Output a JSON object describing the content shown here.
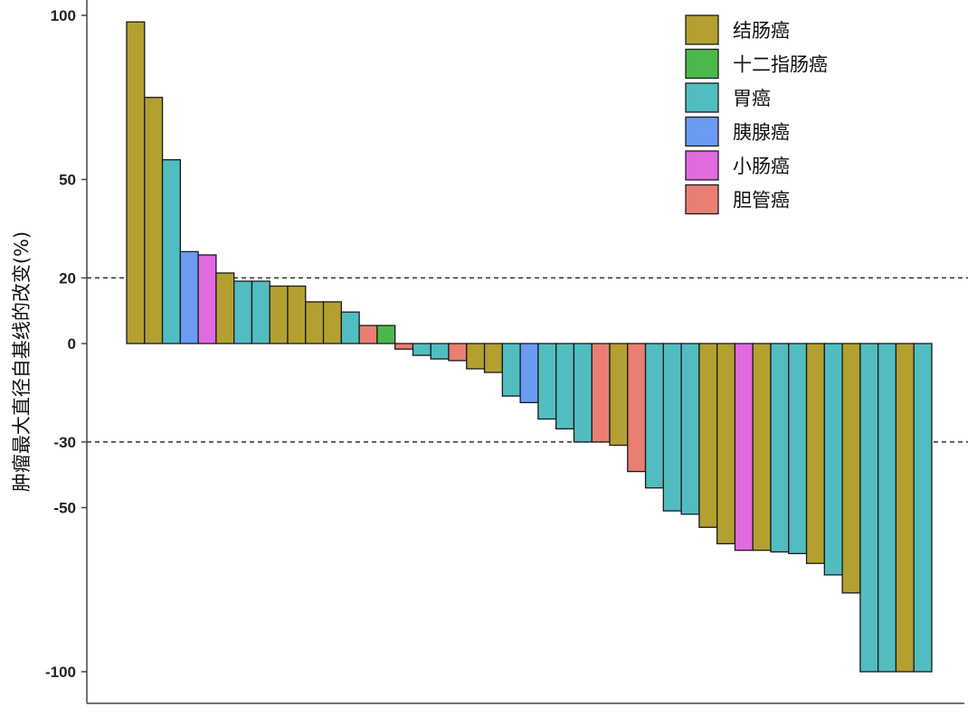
{
  "chart_data": {
    "type": "bar",
    "title": "",
    "xlabel": "",
    "ylabel": "肿瘤最大直径自基线的改变(%)",
    "ylim": [
      -108,
      100
    ],
    "yticks": [
      100,
      50,
      20,
      0,
      -30,
      -50,
      -100
    ],
    "reference_lines": [
      20,
      -30
    ],
    "grid": false,
    "legend_position": "top-right",
    "legend": [
      {
        "name": "结肠癌",
        "color": "#b3a031"
      },
      {
        "name": "十二指肠癌",
        "color": "#4cb84a"
      },
      {
        "name": "胃癌",
        "color": "#52bdc1"
      },
      {
        "name": "胰腺癌",
        "color": "#6b9bf2"
      },
      {
        "name": "小肠癌",
        "color": "#e06ae0"
      },
      {
        "name": "胆管癌",
        "color": "#e87f72"
      }
    ],
    "bars": [
      {
        "type": "结肠癌",
        "value": 98
      },
      {
        "type": "结肠癌",
        "value": 75
      },
      {
        "type": "胃癌",
        "value": 56
      },
      {
        "type": "胰腺癌",
        "value": 28
      },
      {
        "type": "小肠癌",
        "value": 27
      },
      {
        "type": "结肠癌",
        "value": 21.5
      },
      {
        "type": "胃癌",
        "value": 19
      },
      {
        "type": "胃癌",
        "value": 19
      },
      {
        "type": "结肠癌",
        "value": 17.5
      },
      {
        "type": "结肠癌",
        "value": 17.5
      },
      {
        "type": "结肠癌",
        "value": 12.7
      },
      {
        "type": "结肠癌",
        "value": 12.7
      },
      {
        "type": "胃癌",
        "value": 9.6
      },
      {
        "type": "胆管癌",
        "value": 5.5
      },
      {
        "type": "十二指肠癌",
        "value": 5.5
      },
      {
        "type": "胆管癌",
        "value": -1.7
      },
      {
        "type": "胃癌",
        "value": -3.6
      },
      {
        "type": "胃癌",
        "value": -4.7
      },
      {
        "type": "胆管癌",
        "value": -5.2
      },
      {
        "type": "结肠癌",
        "value": -7.7
      },
      {
        "type": "结肠癌",
        "value": -8.8
      },
      {
        "type": "胃癌",
        "value": -16
      },
      {
        "type": "胰腺癌",
        "value": -18
      },
      {
        "type": "胃癌",
        "value": -23
      },
      {
        "type": "胃癌",
        "value": -26
      },
      {
        "type": "胃癌",
        "value": -30
      },
      {
        "type": "胆管癌",
        "value": -30
      },
      {
        "type": "结肠癌",
        "value": -31
      },
      {
        "type": "胆管癌",
        "value": -39
      },
      {
        "type": "胃癌",
        "value": -44
      },
      {
        "type": "胃癌",
        "value": -51
      },
      {
        "type": "胃癌",
        "value": -52
      },
      {
        "type": "结肠癌",
        "value": -56
      },
      {
        "type": "结肠癌",
        "value": -61
      },
      {
        "type": "小肠癌",
        "value": -63
      },
      {
        "type": "结肠癌",
        "value": -63
      },
      {
        "type": "胃癌",
        "value": -63.5
      },
      {
        "type": "胃癌",
        "value": -64
      },
      {
        "type": "结肠癌",
        "value": -67
      },
      {
        "type": "胃癌",
        "value": -70.5
      },
      {
        "type": "结肠癌",
        "value": -76
      },
      {
        "type": "胃癌",
        "value": -100
      },
      {
        "type": "胃癌",
        "value": -100
      },
      {
        "type": "结肠癌",
        "value": -100
      },
      {
        "type": "胃癌",
        "value": -100
      }
    ]
  }
}
